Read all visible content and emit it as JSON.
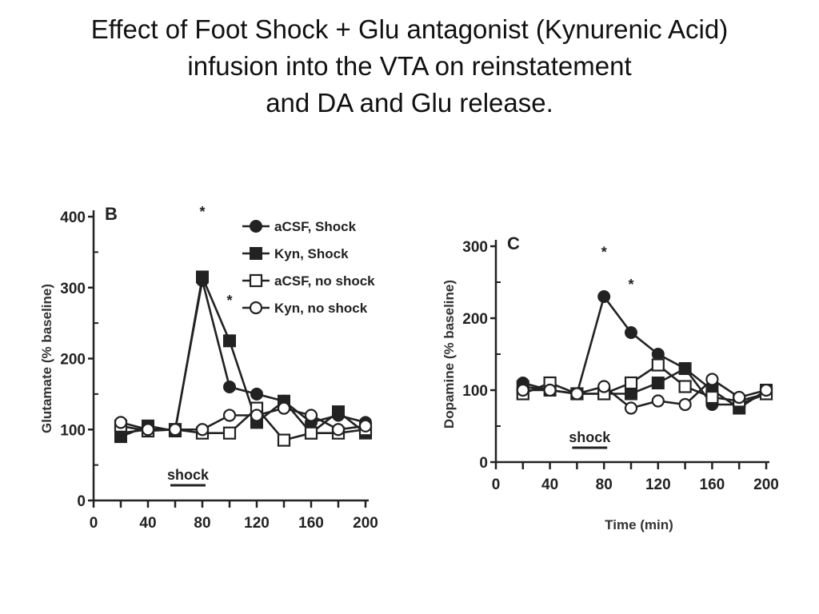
{
  "slide": {
    "title_lines": [
      "Effect of Foot Shock + Glu antagonist (Kynurenic Acid)",
      "infusion into the VTA on reinstatement",
      "and DA and Glu release."
    ]
  },
  "chart_data": [
    {
      "type": "line",
      "panel": "B",
      "ylabel": "Glutamate (% baseline)",
      "xlabel": "",
      "xlim": [
        0,
        200
      ],
      "ylim": [
        0,
        400
      ],
      "xticks": [
        0,
        40,
        80,
        120,
        160,
        200
      ],
      "yticks": [
        0,
        100,
        200,
        300,
        400
      ],
      "x": [
        20,
        40,
        60,
        80,
        100,
        120,
        140,
        160,
        180,
        200
      ],
      "series": [
        {
          "name": "aCSF, Shock",
          "marker": "filled-circle",
          "values": [
            95,
            100,
            100,
            310,
            160,
            150,
            140,
            110,
            120,
            110
          ]
        },
        {
          "name": "Kyn, Shock",
          "marker": "filled-square",
          "values": [
            90,
            105,
            98,
            315,
            225,
            110,
            140,
            95,
            125,
            95
          ]
        },
        {
          "name": "aCSF, no shock",
          "marker": "open-square",
          "values": [
            105,
            98,
            100,
            95,
            95,
            130,
            85,
            95,
            95,
            100
          ]
        },
        {
          "name": "Kyn, no shock",
          "marker": "open-circle",
          "values": [
            110,
            100,
            100,
            100,
            120,
            120,
            130,
            120,
            100,
            105
          ]
        }
      ],
      "annotations": [
        {
          "text": "*",
          "x": 80,
          "y": 400
        },
        {
          "text": "*",
          "x": 100,
          "y": 275
        },
        {
          "text": "shock",
          "x_start": 60,
          "x_end": 80
        }
      ],
      "legend_position": "top-right",
      "grid": false
    },
    {
      "type": "line",
      "panel": "C",
      "ylabel": "Dopamine (% baseline)",
      "xlabel": "Time (min)",
      "xlim": [
        0,
        200
      ],
      "ylim": [
        0,
        300
      ],
      "xticks": [
        0,
        40,
        80,
        120,
        160,
        200
      ],
      "yticks": [
        0,
        100,
        200,
        300
      ],
      "x": [
        20,
        40,
        60,
        80,
        100,
        120,
        140,
        160,
        180,
        200
      ],
      "series": [
        {
          "name": "aCSF, Shock",
          "marker": "filled-circle",
          "values": [
            110,
            100,
            95,
            230,
            180,
            150,
            130,
            80,
            80,
            95
          ]
        },
        {
          "name": "Kyn, Shock",
          "marker": "filled-square",
          "values": [
            105,
            100,
            95,
            95,
            95,
            110,
            130,
            100,
            75,
            100
          ]
        },
        {
          "name": "aCSF, no shock",
          "marker": "open-square",
          "values": [
            95,
            110,
            95,
            95,
            110,
            135,
            105,
            90,
            85,
            95
          ]
        },
        {
          "name": "Kyn, no shock",
          "marker": "open-circle",
          "values": [
            100,
            100,
            95,
            105,
            75,
            85,
            80,
            115,
            90,
            100
          ]
        }
      ],
      "annotations": [
        {
          "text": "*",
          "x": 80,
          "y": 285
        },
        {
          "text": "*",
          "x": 100,
          "y": 240
        },
        {
          "text": "shock",
          "x_start": 60,
          "x_end": 80
        }
      ],
      "grid": false
    }
  ]
}
